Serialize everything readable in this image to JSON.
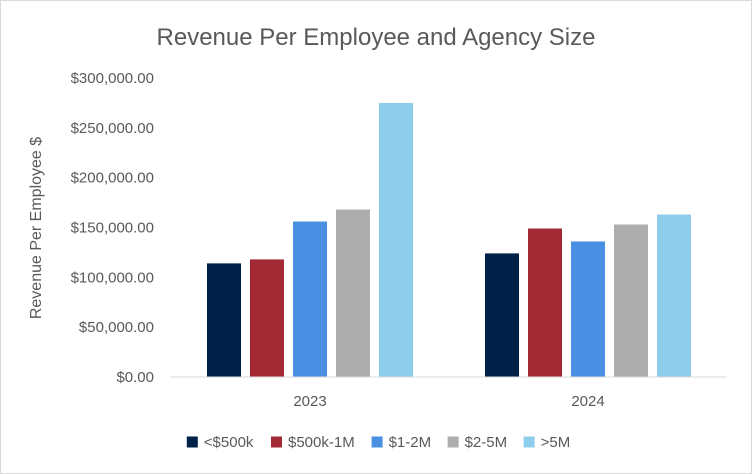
{
  "chart_data": {
    "type": "bar",
    "title": "Revenue Per Employee and Agency Size",
    "xlabel": "",
    "ylabel": "Revenue Per Employee $",
    "categories": [
      "2023",
      "2024"
    ],
    "ylim": [
      0,
      300000
    ],
    "ytick_values": [
      0,
      50000,
      100000,
      150000,
      200000,
      250000,
      300000
    ],
    "ytick_labels": [
      "$0.00",
      "$50,000.00",
      "$100,000.00",
      "$150,000.00",
      "$200,000.00",
      "$250,000.00",
      "$300,000.00"
    ],
    "grid": false,
    "legend_position": "bottom",
    "series": [
      {
        "name": "<$500k",
        "color": "#002147",
        "values": [
          114000,
          124000
        ]
      },
      {
        "name": "$500k-1M",
        "color": "#A32A35",
        "values": [
          118000,
          149000
        ]
      },
      {
        "name": "$1-2M",
        "color": "#4A90E2",
        "values": [
          156000,
          136000
        ]
      },
      {
        "name": "$2-5M",
        "color": "#ADADAD",
        "values": [
          168000,
          153000
        ]
      },
      {
        "name": ">5M",
        "color": "#8ECDEB",
        "values": [
          275000,
          163000
        ]
      }
    ]
  }
}
